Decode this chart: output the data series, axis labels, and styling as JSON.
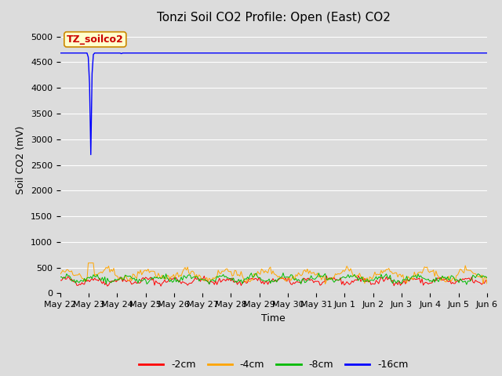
{
  "title": "Tonzi Soil CO2 Profile: Open (East) CO2",
  "ylabel": "Soil CO2 (mV)",
  "xlabel": "Time",
  "ylim": [
    0,
    5200
  ],
  "yticks": [
    0,
    500,
    1000,
    1500,
    2000,
    2500,
    3000,
    3500,
    4000,
    4500,
    5000
  ],
  "legend_label": "TZ_soilco2",
  "series_labels": [
    "-2cm",
    "-4cm",
    "-8cm",
    "-16cm"
  ],
  "series_colors": [
    "#ff0000",
    "#ffa500",
    "#00bb00",
    "#0000ff"
  ],
  "background_color": "#dcdcdc",
  "fig_background": "#dcdcdc",
  "n_points": 336,
  "blue_base": 4680,
  "blue_dip_index": 24,
  "blue_dip_value": 2700,
  "red_mean": 240,
  "red_amplitude": 45,
  "orange_mean": 360,
  "orange_amplitude": 90,
  "orange_spike_index": 24,
  "orange_spike_value": 590,
  "green_mean": 280,
  "green_amplitude": 55,
  "title_fontsize": 11,
  "axis_label_fontsize": 9,
  "tick_fontsize": 8,
  "legend_fontsize": 9,
  "grid_color": "#ffffff",
  "tick_label_dates": [
    "May 22",
    "May 23",
    "May 24",
    "May 25",
    "May 26",
    "May 27",
    "May 28",
    "May 29",
    "May 30",
    "May 31",
    "Jun 1",
    "Jun 2",
    "Jun 3",
    "Jun 4",
    "Jun 5",
    "Jun 6"
  ]
}
